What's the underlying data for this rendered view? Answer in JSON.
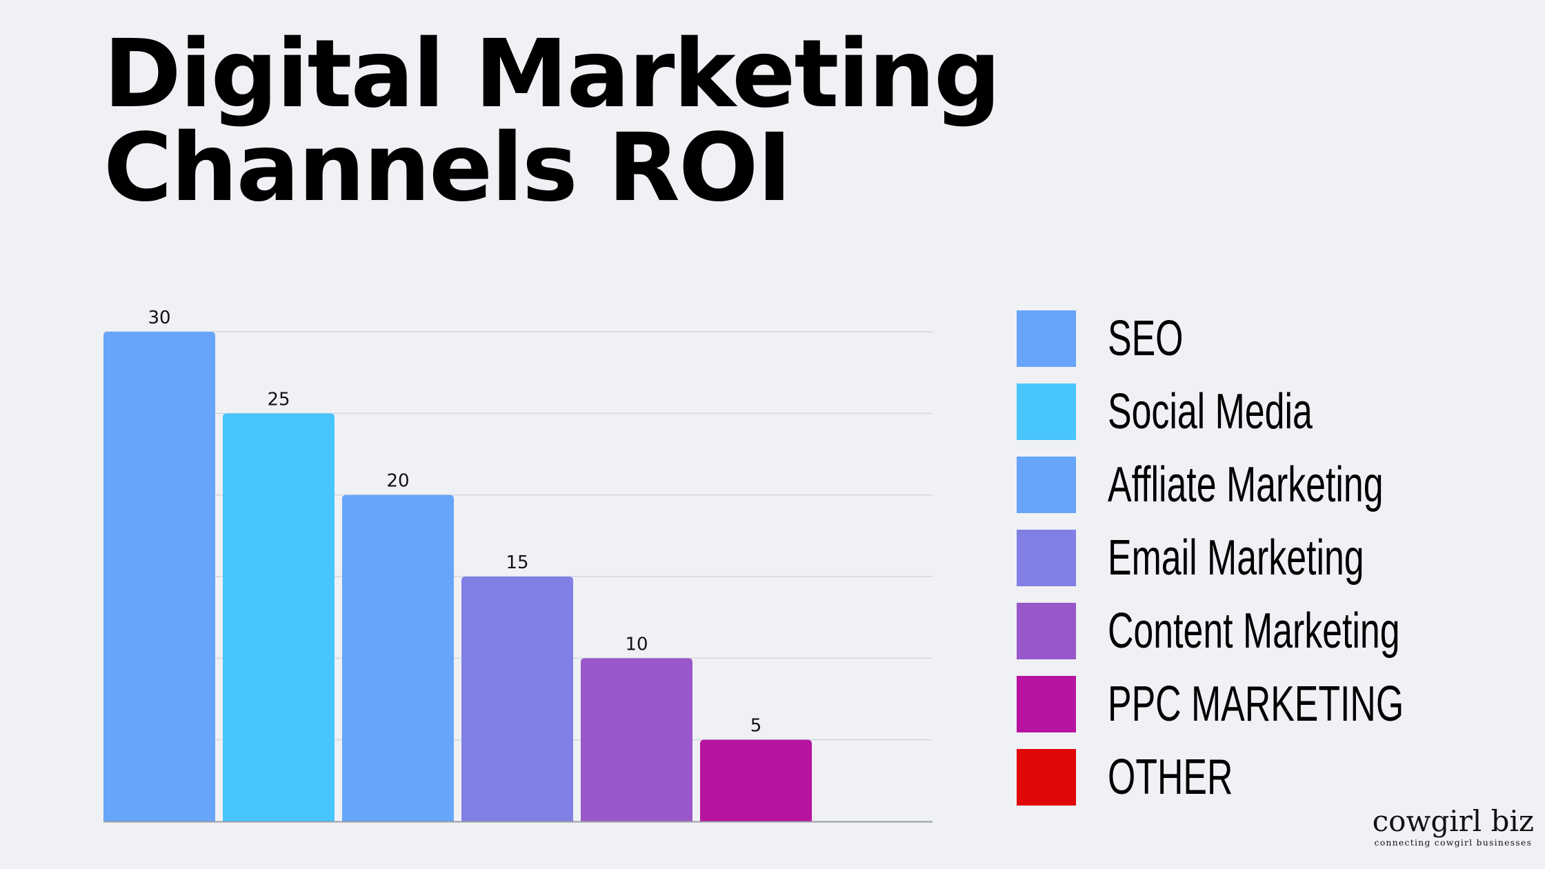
{
  "title": {
    "line1": "Digital Marketing",
    "line2": "Channels ROI"
  },
  "chart_data": {
    "type": "bar",
    "title": "Digital Marketing Channels ROI",
    "categories": [
      "SEO",
      "Social Media",
      "Affliate Marketing",
      "Email Marketing",
      "Content Marketing",
      "PPC MARKETING",
      "OTHER"
    ],
    "values": [
      30,
      25,
      20,
      15,
      10,
      5,
      0
    ],
    "data_labels": [
      "30",
      "25",
      "20",
      "15",
      "10",
      "5",
      ""
    ],
    "colors": [
      "#67a5fa",
      "#48c5fd",
      "#67a5fa",
      "#8080e4",
      "#9958c9",
      "#b813a0",
      "#df0707"
    ],
    "ylim": [
      0,
      30
    ],
    "gridline_step": 5,
    "xlabel": "",
    "ylabel": "",
    "grid": true,
    "legend_position": "right"
  },
  "legend": {
    "items": [
      {
        "label": "SEO",
        "color": "#67a5fa"
      },
      {
        "label": "Social Media",
        "color": "#48c5fd"
      },
      {
        "label": "Affliate Marketing",
        "color": "#67a5fa"
      },
      {
        "label": "Email Marketing",
        "color": "#8080e4"
      },
      {
        "label": "Content Marketing",
        "color": "#9958c9"
      },
      {
        "label": "PPC MARKETING",
        "color": "#b813a0"
      },
      {
        "label": "OTHER",
        "color": "#df0707"
      }
    ]
  },
  "brand": {
    "name": "cowgirl biz",
    "tagline": "connecting cowgirl businesses"
  }
}
